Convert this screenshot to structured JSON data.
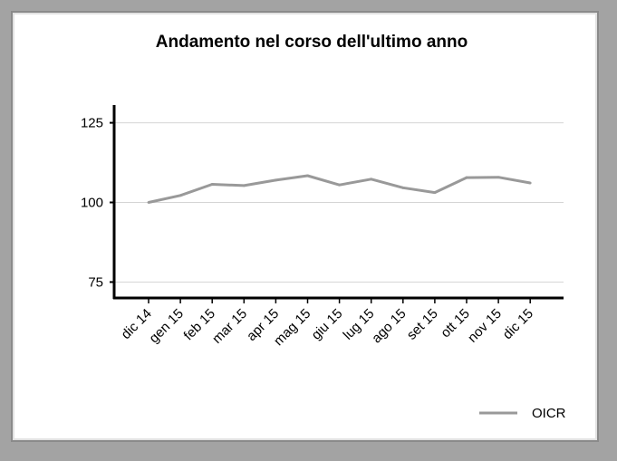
{
  "chart_data": {
    "type": "line",
    "title": "Andamento nel corso dell'ultimo anno",
    "xlabel": "",
    "ylabel": "",
    "categories": [
      "dic 14",
      "gen 15",
      "feb 15",
      "mar 15",
      "apr 15",
      "mag 15",
      "giu 15",
      "lug 15",
      "ago 15",
      "set 15",
      "ott 15",
      "nov 15",
      "dic 15"
    ],
    "series": [
      {
        "name": "OICR",
        "color": "#999999",
        "values": [
          100.0,
          102.2,
          105.7,
          105.3,
          107.0,
          108.4,
          105.5,
          107.3,
          104.6,
          103.1,
          107.8,
          107.9,
          106.1
        ]
      }
    ],
    "ylim": [
      70,
      130
    ],
    "yticks": [
      75,
      100,
      125
    ],
    "grid": true,
    "legend": "bottom-right"
  }
}
